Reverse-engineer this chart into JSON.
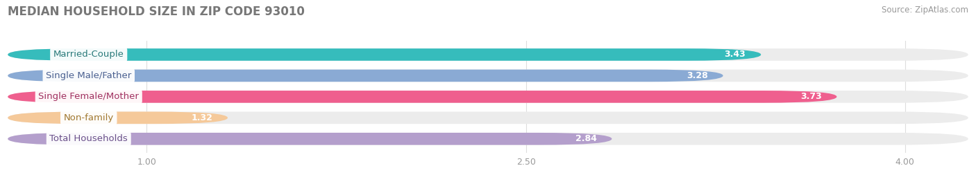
{
  "title": "MEDIAN HOUSEHOLD SIZE IN ZIP CODE 93010",
  "source": "Source: ZipAtlas.com",
  "categories": [
    "Married-Couple",
    "Single Male/Father",
    "Single Female/Mother",
    "Non-family",
    "Total Households"
  ],
  "values": [
    3.43,
    3.28,
    3.73,
    1.32,
    2.84
  ],
  "bar_colors": [
    "#36bcbc",
    "#8aaad4",
    "#ef5f8e",
    "#f5c99a",
    "#b49fcc"
  ],
  "label_text_colors": [
    "#2a7a7a",
    "#4a6090",
    "#a03060",
    "#a07830",
    "#6a508a"
  ],
  "xlim_left": 0.45,
  "xlim_right": 4.25,
  "xticks": [
    1.0,
    2.5,
    4.0
  ],
  "xtick_labels": [
    "1.00",
    "2.50",
    "4.00"
  ],
  "bar_height": 0.58,
  "bar_gap": 0.42,
  "label_fontsize": 9.5,
  "value_fontsize": 9.0,
  "title_fontsize": 12,
  "source_fontsize": 8.5,
  "background_color": "#ffffff",
  "bar_bg_color": "#ececec",
  "title_color": "#777777",
  "source_color": "#999999",
  "tick_color": "#999999"
}
